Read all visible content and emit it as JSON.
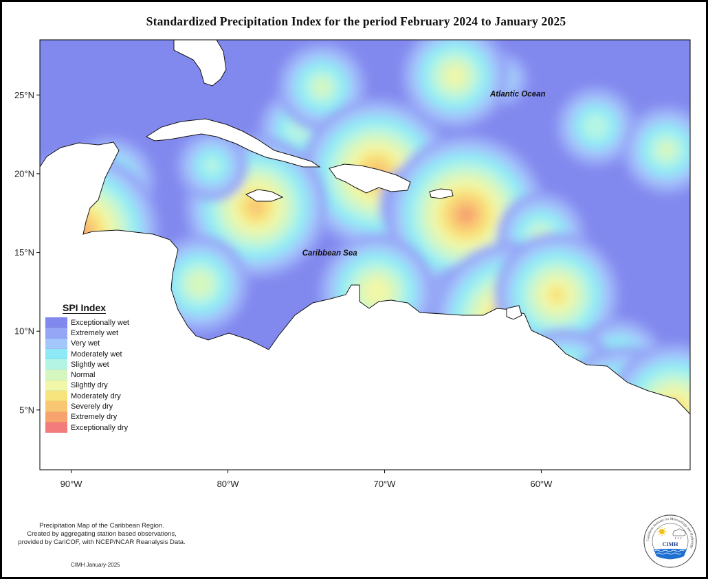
{
  "title": "Standardized Precipitation Index for the period February 2024 to January 2025",
  "map": {
    "lon_range": [
      -92,
      -50.5
    ],
    "lat_range": [
      1.2,
      28.5
    ],
    "lat_ticks": [
      {
        "value": 25,
        "label": "25°N"
      },
      {
        "value": 20,
        "label": "20°N"
      },
      {
        "value": 15,
        "label": "15°N"
      },
      {
        "value": 10,
        "label": "10°N"
      },
      {
        "value": 5,
        "label": "5°N"
      }
    ],
    "lon_ticks": [
      {
        "value": -90,
        "label": "90°W"
      },
      {
        "value": -80,
        "label": "80°W"
      },
      {
        "value": -70,
        "label": "70°W"
      },
      {
        "value": -60,
        "label": "60°W"
      }
    ],
    "ocean_labels": [
      {
        "text": "Atlantic Ocean",
        "lon": -61.5,
        "lat": 24.9
      },
      {
        "text": "Caribbean Sea",
        "lon": -73.5,
        "lat": 14.8
      }
    ],
    "base_color": "#8289ee",
    "land_color": "#ffffff",
    "anomalies": [
      {
        "lon": -56.5,
        "lat": 23.0,
        "level": 4.5
      },
      {
        "lon": -52.0,
        "lat": 21.5,
        "level": 5
      },
      {
        "lon": -62.5,
        "lat": 26.0,
        "level": 3
      },
      {
        "lon": -65.5,
        "lat": 26.2,
        "level": 6
      },
      {
        "lon": -75.5,
        "lat": 22.8,
        "level": 4.5
      },
      {
        "lon": -74.0,
        "lat": 25.5,
        "level": 5
      },
      {
        "lon": -70.5,
        "lat": 20.0,
        "level": 8.5
      },
      {
        "lon": -67.5,
        "lat": 18.0,
        "level": 5
      },
      {
        "lon": -64.8,
        "lat": 17.4,
        "level": 9
      },
      {
        "lon": -60.0,
        "lat": 16.0,
        "level": 5
      },
      {
        "lon": -78.2,
        "lat": 17.9,
        "level": 8
      },
      {
        "lon": -81.8,
        "lat": 13.0,
        "level": 5.5
      },
      {
        "lon": -87.5,
        "lat": 19.5,
        "level": 5
      },
      {
        "lon": -89.5,
        "lat": 17.5,
        "level": 5
      },
      {
        "lon": -89.5,
        "lat": 16.3,
        "level": 9
      },
      {
        "lon": -81.0,
        "lat": 20.5,
        "level": 4
      },
      {
        "lon": -70.5,
        "lat": 12.5,
        "level": 6.5
      },
      {
        "lon": -65.0,
        "lat": 12.0,
        "level": 4
      },
      {
        "lon": -61.8,
        "lat": 10.6,
        "level": 9
      },
      {
        "lon": -59.0,
        "lat": 12.3,
        "level": 7
      },
      {
        "lon": -55.0,
        "lat": 8.0,
        "level": 5
      },
      {
        "lon": -58.5,
        "lat": 6.5,
        "level": 6.5
      },
      {
        "lon": -54.5,
        "lat": 3.4,
        "level": 10
      },
      {
        "lon": -51.5,
        "lat": 5.0,
        "level": 7.5
      },
      {
        "lon": -57.0,
        "lat": 4.0,
        "level": 5.5
      }
    ]
  },
  "legend": {
    "title": "SPI Index",
    "items": [
      {
        "label": "Exceptionally wet",
        "color": "#8289ee"
      },
      {
        "label": "Extremely wet",
        "color": "#95a6f6"
      },
      {
        "label": "Very wet",
        "color": "#a4c7fb"
      },
      {
        "label": "Moderately wet",
        "color": "#8ee9f6"
      },
      {
        "label": "Slightly wet",
        "color": "#b4f4e4"
      },
      {
        "label": "Normal",
        "color": "#d5f7bf"
      },
      {
        "label": "Slightly dry",
        "color": "#f0f7a8"
      },
      {
        "label": "Moderately dry",
        "color": "#f8e47c"
      },
      {
        "label": "Severely dry",
        "color": "#f9c774"
      },
      {
        "label": "Extremely dry",
        "color": "#f7a36e"
      },
      {
        "label": "Exceptionally dry",
        "color": "#f47b7b"
      }
    ]
  },
  "credit": {
    "line1": "Precipitation Map of the Caribbean Region.",
    "line2": "Created by aggregating station based observations,",
    "line3": "provided by CariCOF, with NCEP/NCAR Reanalysis Data."
  },
  "date_note": "CIMH January-2025",
  "logo": {
    "text": "CIMH",
    "ring_text": "Caribbean Institute for Meteorology and Hydrology",
    "icons": [
      "sun-icon",
      "cloud-icon",
      "waves-icon"
    ]
  }
}
